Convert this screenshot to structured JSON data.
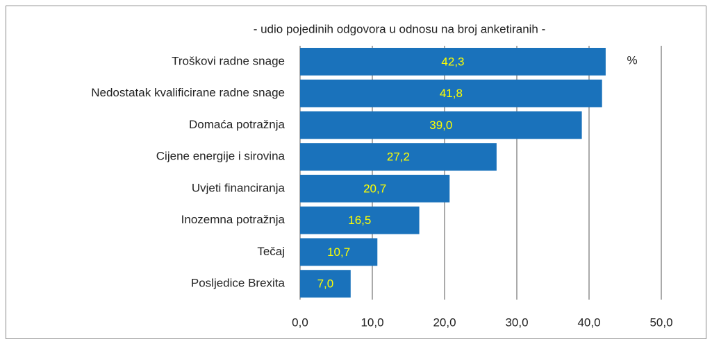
{
  "chart_data": {
    "type": "barh",
    "title": "- udio pojedinih odgovora u odnosu na broj anketiranih -",
    "unit": "%",
    "categories": [
      "Troškovi radne snage",
      "Nedostatak kvalificirane radne snage",
      "Domaća potražnja",
      "Cijene energije i sirovina",
      "Uvjeti financiranja",
      "Inozemna potražnja",
      "Tečaj",
      "Posljedice Brexita"
    ],
    "values": [
      42.3,
      41.8,
      39.0,
      27.2,
      20.7,
      16.5,
      10.7,
      7.0
    ],
    "value_labels": [
      "42,3",
      "41,8",
      "39,0",
      "27,2",
      "20,7",
      "16,5",
      "10,7",
      "7,0"
    ],
    "color": "#1a72bb",
    "label_color": "#ffff00",
    "xlim": [
      0,
      50
    ],
    "xticks": [
      {
        "value": 0,
        "label": "0,0"
      },
      {
        "value": 10,
        "label": "10,0"
      },
      {
        "value": 20,
        "label": "20,0"
      },
      {
        "value": 30,
        "label": "30,0"
      },
      {
        "value": 40,
        "label": "40,0"
      },
      {
        "value": 50,
        "label": "50,0"
      }
    ],
    "grid": true
  }
}
